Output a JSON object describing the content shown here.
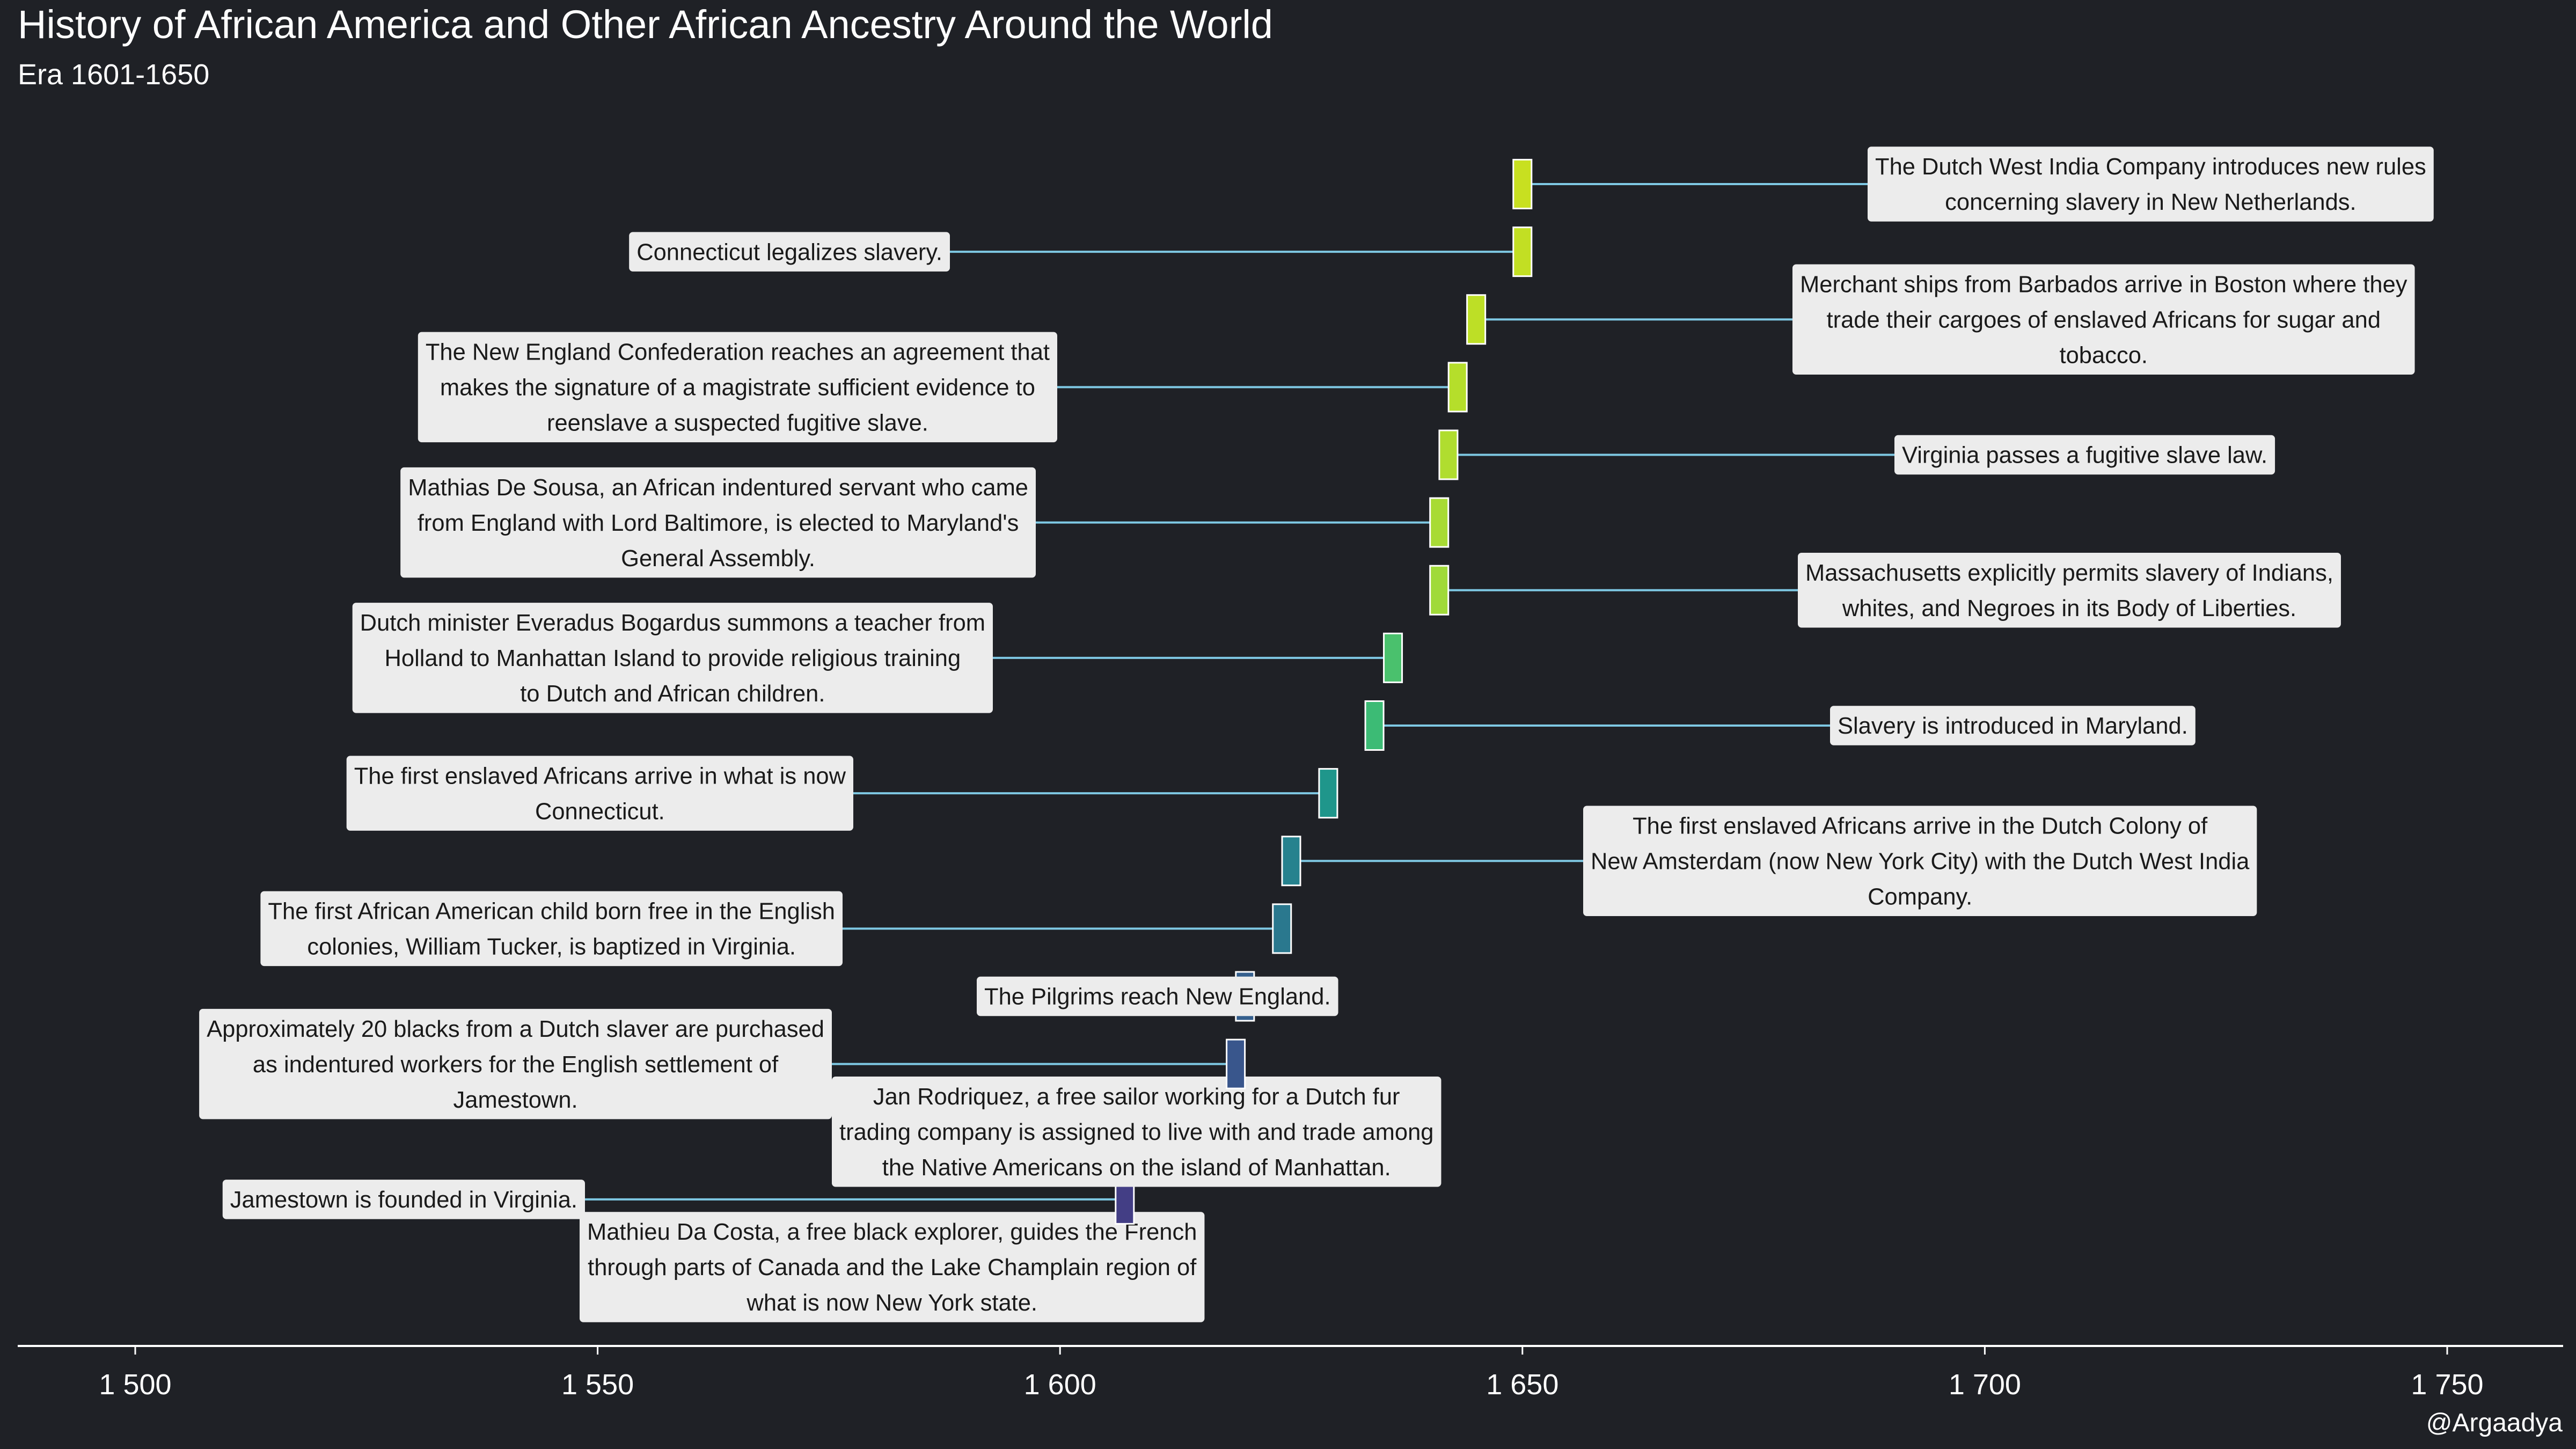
{
  "chart_data": {
    "type": "timeline",
    "title": "History of African America and Other African Ancestry Around the World",
    "subtitle": "Era 1601-1650",
    "caption": "@Argaadya",
    "xlim": [
      1500,
      1750
    ],
    "ticks": [
      1500,
      1550,
      1600,
      1650,
      1700,
      1750
    ],
    "tick_labels": [
      "1 500",
      "1 550",
      "1 600",
      "1 650",
      "1 700",
      "1 750"
    ],
    "colors": {
      "background": "#1f2126",
      "axis": "#ffffff",
      "connector": "#7ec8e3",
      "label_bg": "#ececec",
      "label_text": "#1a1a1a"
    },
    "events": [
      {
        "year": 1603,
        "color": "#482878",
        "label_side": "right",
        "lines": [
          "Mathieu Da Costa, a free black explorer, guides the French",
          "through parts of Canada and the Lake Champlain region of",
          "what is now New York state."
        ]
      },
      {
        "year": 1607,
        "color": "#433e85",
        "label_side": "left",
        "lines": [
          "Jamestown is founded in Virginia."
        ]
      },
      {
        "year": 1613,
        "color": "#3e4a89",
        "label_side": "right",
        "lines": [
          "Jan Rodriquez, a free sailor working for a Dutch fur",
          "trading company is assigned to live with and trade among",
          "the Native Americans on the island of Manhattan."
        ]
      },
      {
        "year": 1619,
        "color": "#39568c",
        "label_side": "left",
        "lines": [
          "Approximately 20 blacks from a Dutch slaver are purchased",
          "as indentured workers for the English settlement of",
          "Jamestown."
        ]
      },
      {
        "year": 1620,
        "color": "#355f8d",
        "label_side": "right",
        "lines": [
          "The Pilgrims reach New England."
        ]
      },
      {
        "year": 1624,
        "color": "#2a788e",
        "label_side": "left",
        "lines": [
          "The first African American child born free in the English",
          "colonies, William Tucker, is baptized in Virginia."
        ]
      },
      {
        "year": 1625,
        "color": "#26828e",
        "label_side": "right",
        "lines": [
          "The first enslaved Africans arrive in the Dutch Colony of",
          "New Amsterdam (now New York City) with the Dutch West India",
          "Company."
        ]
      },
      {
        "year": 1629,
        "color": "#1f968b",
        "label_side": "left",
        "lines": [
          "The first enslaved Africans arrive in what is now",
          "Connecticut."
        ]
      },
      {
        "year": 1634,
        "color": "#3cbb75",
        "label_side": "right",
        "lines": [
          "Slavery is introduced in Maryland."
        ]
      },
      {
        "year": 1636,
        "color": "#4ac16d",
        "label_side": "left",
        "lines": [
          "Dutch minister Everadus Bogardus summons a teacher from",
          "Holland to Manhattan Island to provide religious training",
          "to Dutch and African children."
        ]
      },
      {
        "year": 1641,
        "color": "#a0da39",
        "label_side": "right",
        "lines": [
          "Massachusetts explicitly permits slavery of Indians,",
          "whites, and Negroes in its Body of Liberties."
        ]
      },
      {
        "year": 1641,
        "color": "#a8db34",
        "label_side": "left",
        "lines": [
          "Mathias De Sousa, an African indentured servant who came",
          "from England with Lord Baltimore, is elected to Maryland's",
          "General Assembly."
        ]
      },
      {
        "year": 1642,
        "color": "#b0dd2f",
        "label_side": "right",
        "lines": [
          "Virginia passes a fugitive slave law."
        ]
      },
      {
        "year": 1643,
        "color": "#b5de2b",
        "label_side": "left",
        "lines": [
          "The New England Confederation reaches an agreement that",
          "makes the signature of a magistrate sufficient evidence to",
          "reenslave a suspected fugitive slave."
        ]
      },
      {
        "year": 1645,
        "color": "#bddf26",
        "label_side": "right",
        "lines": [
          "Merchant ships from Barbados arrive in Boston where they",
          "trade their cargoes of enslaved Africans for sugar and",
          "tobacco."
        ]
      },
      {
        "year": 1650,
        "color": "#c2df23",
        "label_side": "left",
        "lines": [
          "Connecticut legalizes slavery."
        ]
      },
      {
        "year": 1650,
        "color": "#c8e020",
        "label_side": "right",
        "lines": [
          "The Dutch West India Company introduces new rules",
          "concerning slavery in New Netherlands."
        ]
      }
    ]
  }
}
